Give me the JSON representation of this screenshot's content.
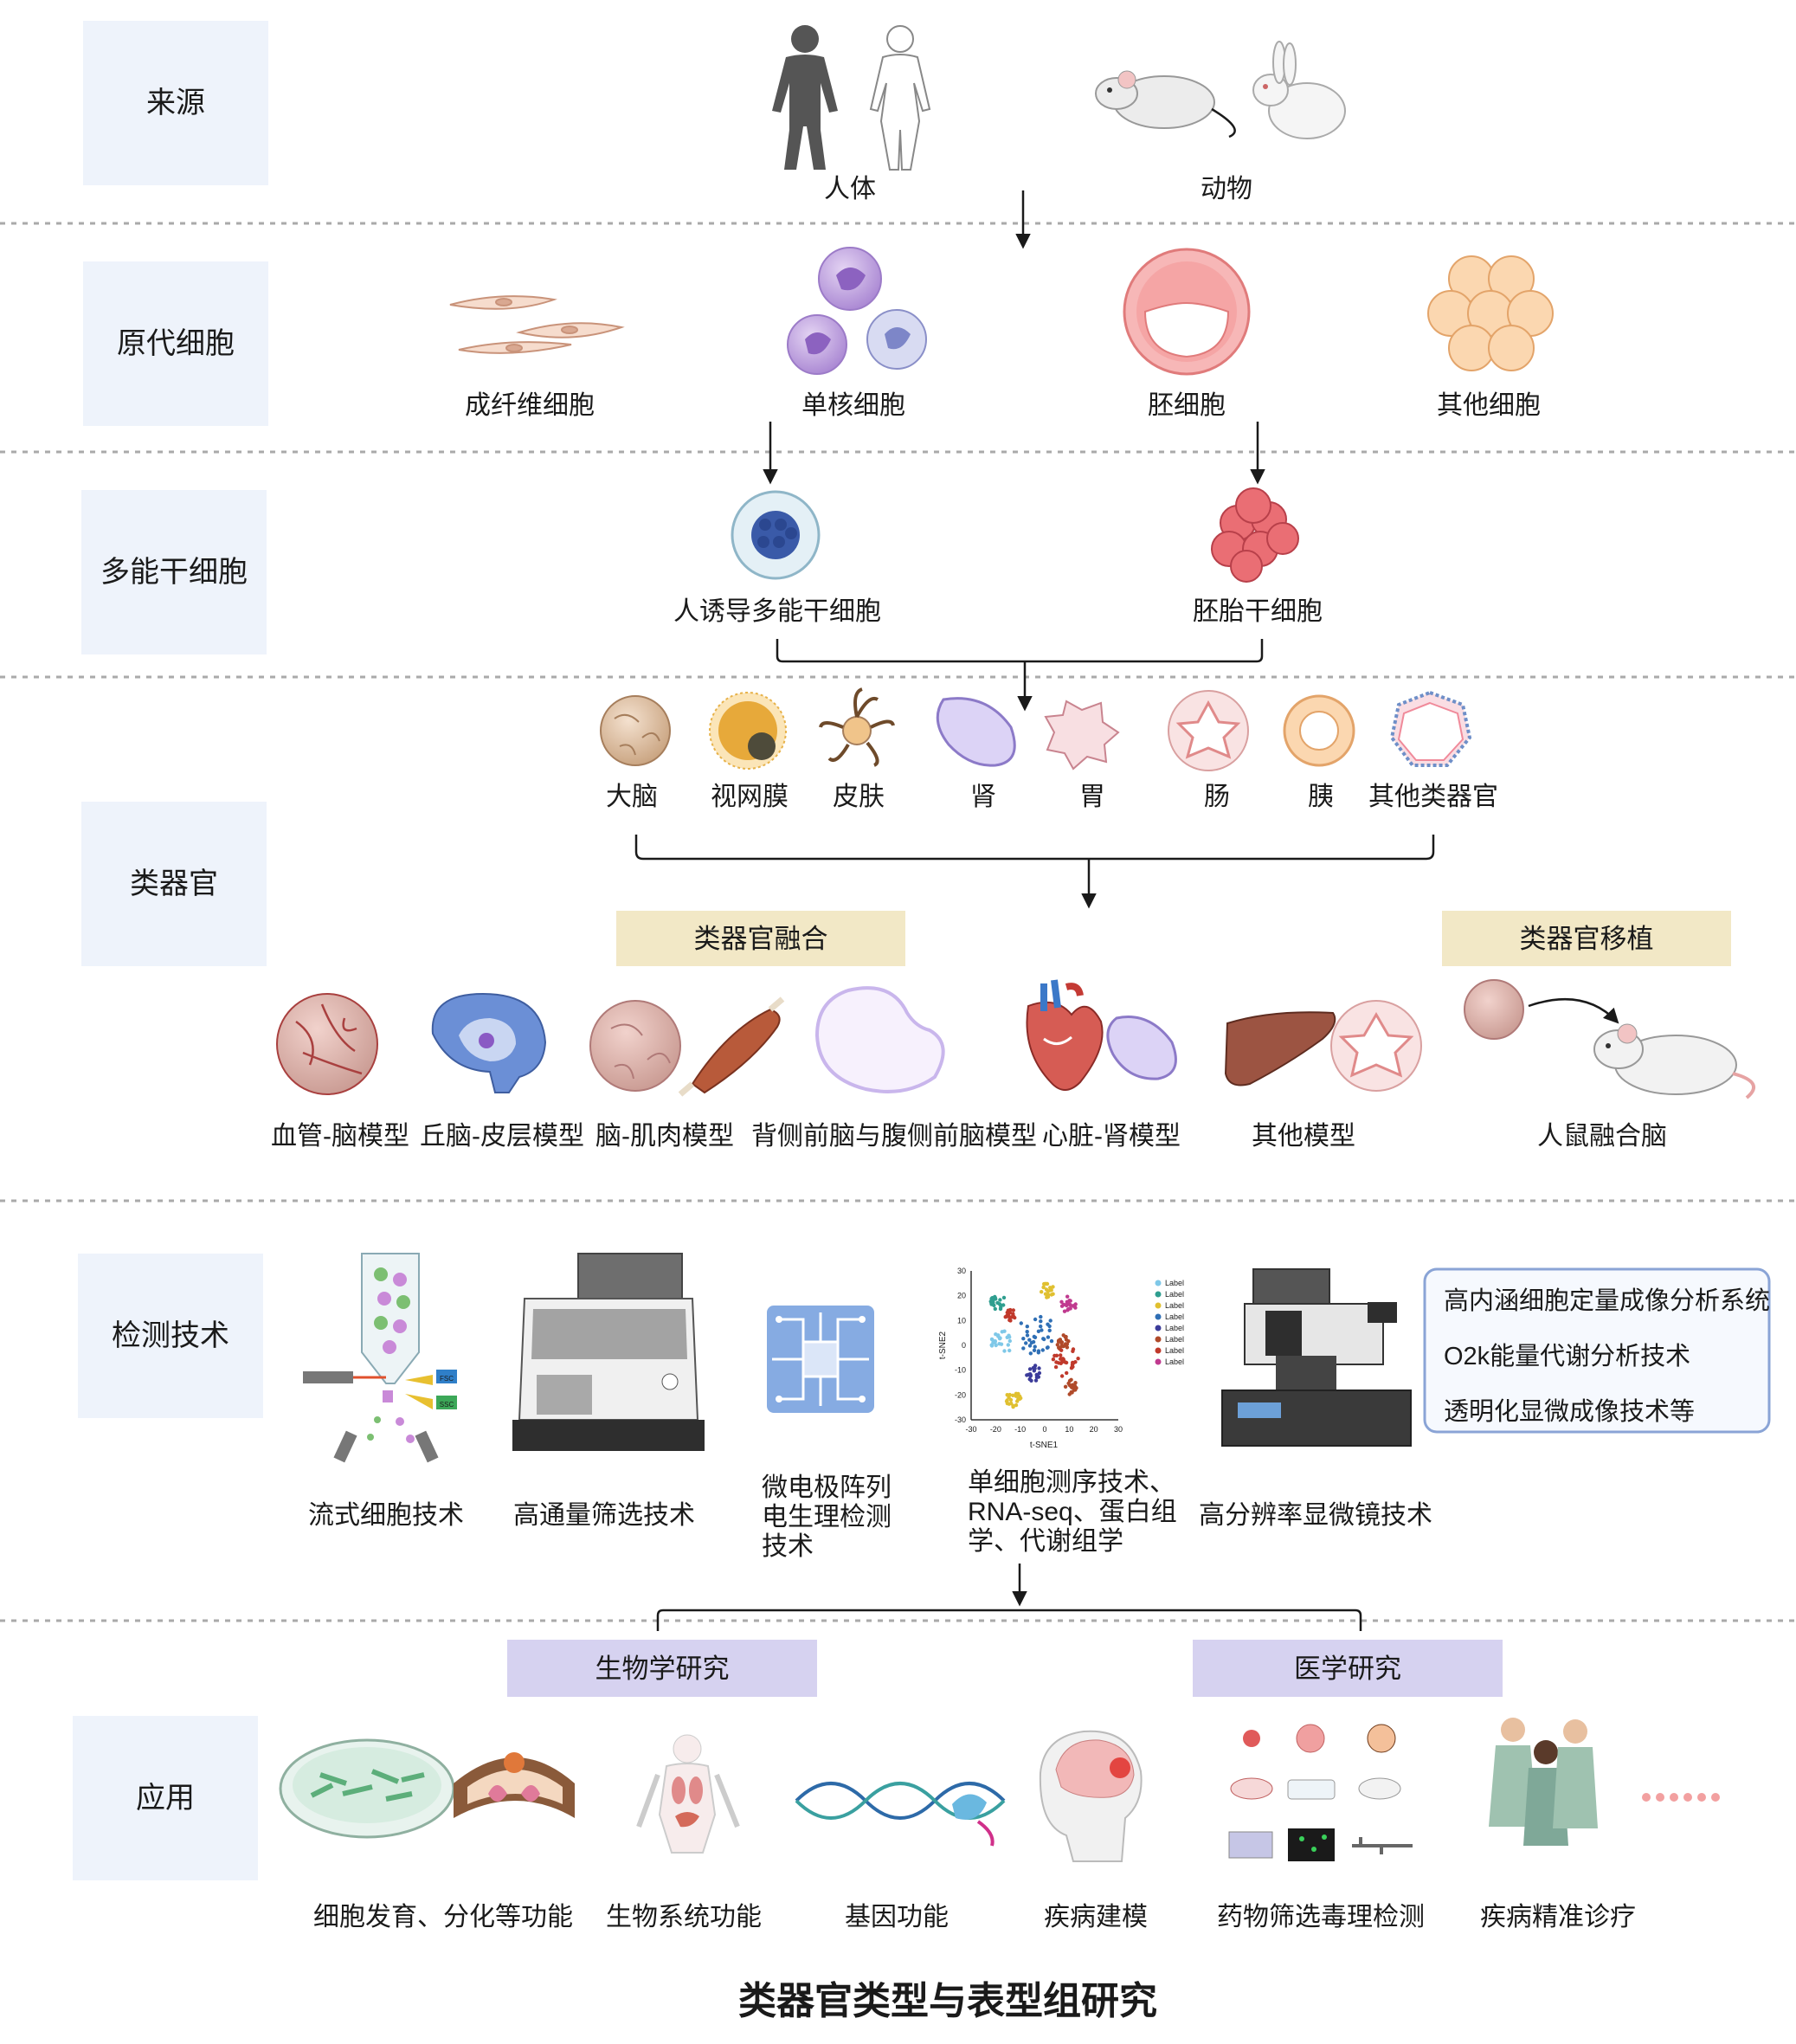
{
  "title": "类器官类型与表型组研究",
  "sections": {
    "source": "来源",
    "primary": "原代细胞",
    "pluripotent": "多能干细胞",
    "organoid": "类器官",
    "detection": "检测技术",
    "application": "应用"
  },
  "source_items": [
    "人体",
    "动物"
  ],
  "primary_items": [
    "成纤维细胞",
    "单核细胞",
    "胚细胞",
    "其他细胞"
  ],
  "stem_items": [
    "人诱导多能干细胞",
    "胚胎干细胞"
  ],
  "organoid_items": [
    "大脑",
    "视网膜",
    "皮肤",
    "肾",
    "胃",
    "肠",
    "胰",
    "其他类器官"
  ],
  "fusion_tag": "类器官融合",
  "transplant_tag": "类器官移植",
  "model_items": [
    "血管-脑模型",
    "丘脑-皮层模型",
    "脑-肌肉模型",
    "背侧前脑与腹侧前脑模型",
    "心脏-肾模型",
    "其他模型",
    "人鼠融合脑"
  ],
  "detection_items": {
    "flow": "流式细胞技术",
    "screening": "高通量筛选技术",
    "mea": [
      "微电极阵列",
      "电生理检测",
      "技术"
    ],
    "seq": [
      "单细胞测序技术、",
      "RNA-seq、蛋白组",
      "学、代谢组学"
    ],
    "microscope": "高分辨率显微镜技术"
  },
  "detection_box": [
    "高内涵细胞定量成像分析系统",
    "O2k能量代谢分析技术",
    "透明化显微成像技术等"
  ],
  "flow_labels": [
    "FSC",
    "SSC"
  ],
  "tsne": {
    "xlabel": "t-SNE1",
    "ylabel": "t-SNE2",
    "xticks": [
      "-30",
      "-20",
      "-10",
      "0",
      "10",
      "20",
      "30"
    ],
    "yticks": [
      "30",
      "20",
      "10",
      "0",
      "-10",
      "-20",
      "-30"
    ],
    "legend": [
      "Label",
      "Label",
      "Label",
      "Label",
      "Label",
      "Label",
      "Label",
      "Label"
    ],
    "colors": [
      "#7fc8e8",
      "#2f9e8f",
      "#e0c030",
      "#2f6fb5",
      "#3c3c9a",
      "#b04a2a",
      "#c0392b",
      "#c03a8f"
    ]
  },
  "bio_tag": "生物学研究",
  "med_tag": "医学研究",
  "app_items": [
    "细胞发育、分化等功能",
    "生物系统功能",
    "基因功能",
    "疾病建模",
    "药物筛选毒理检测",
    "疾病精准诊疗"
  ],
  "colors": {
    "section_bg": "#eef3fb",
    "fusion_bg": "#f2e8c6",
    "research_bg": "#d6d2f0",
    "box_border": "#8aa4d6"
  }
}
